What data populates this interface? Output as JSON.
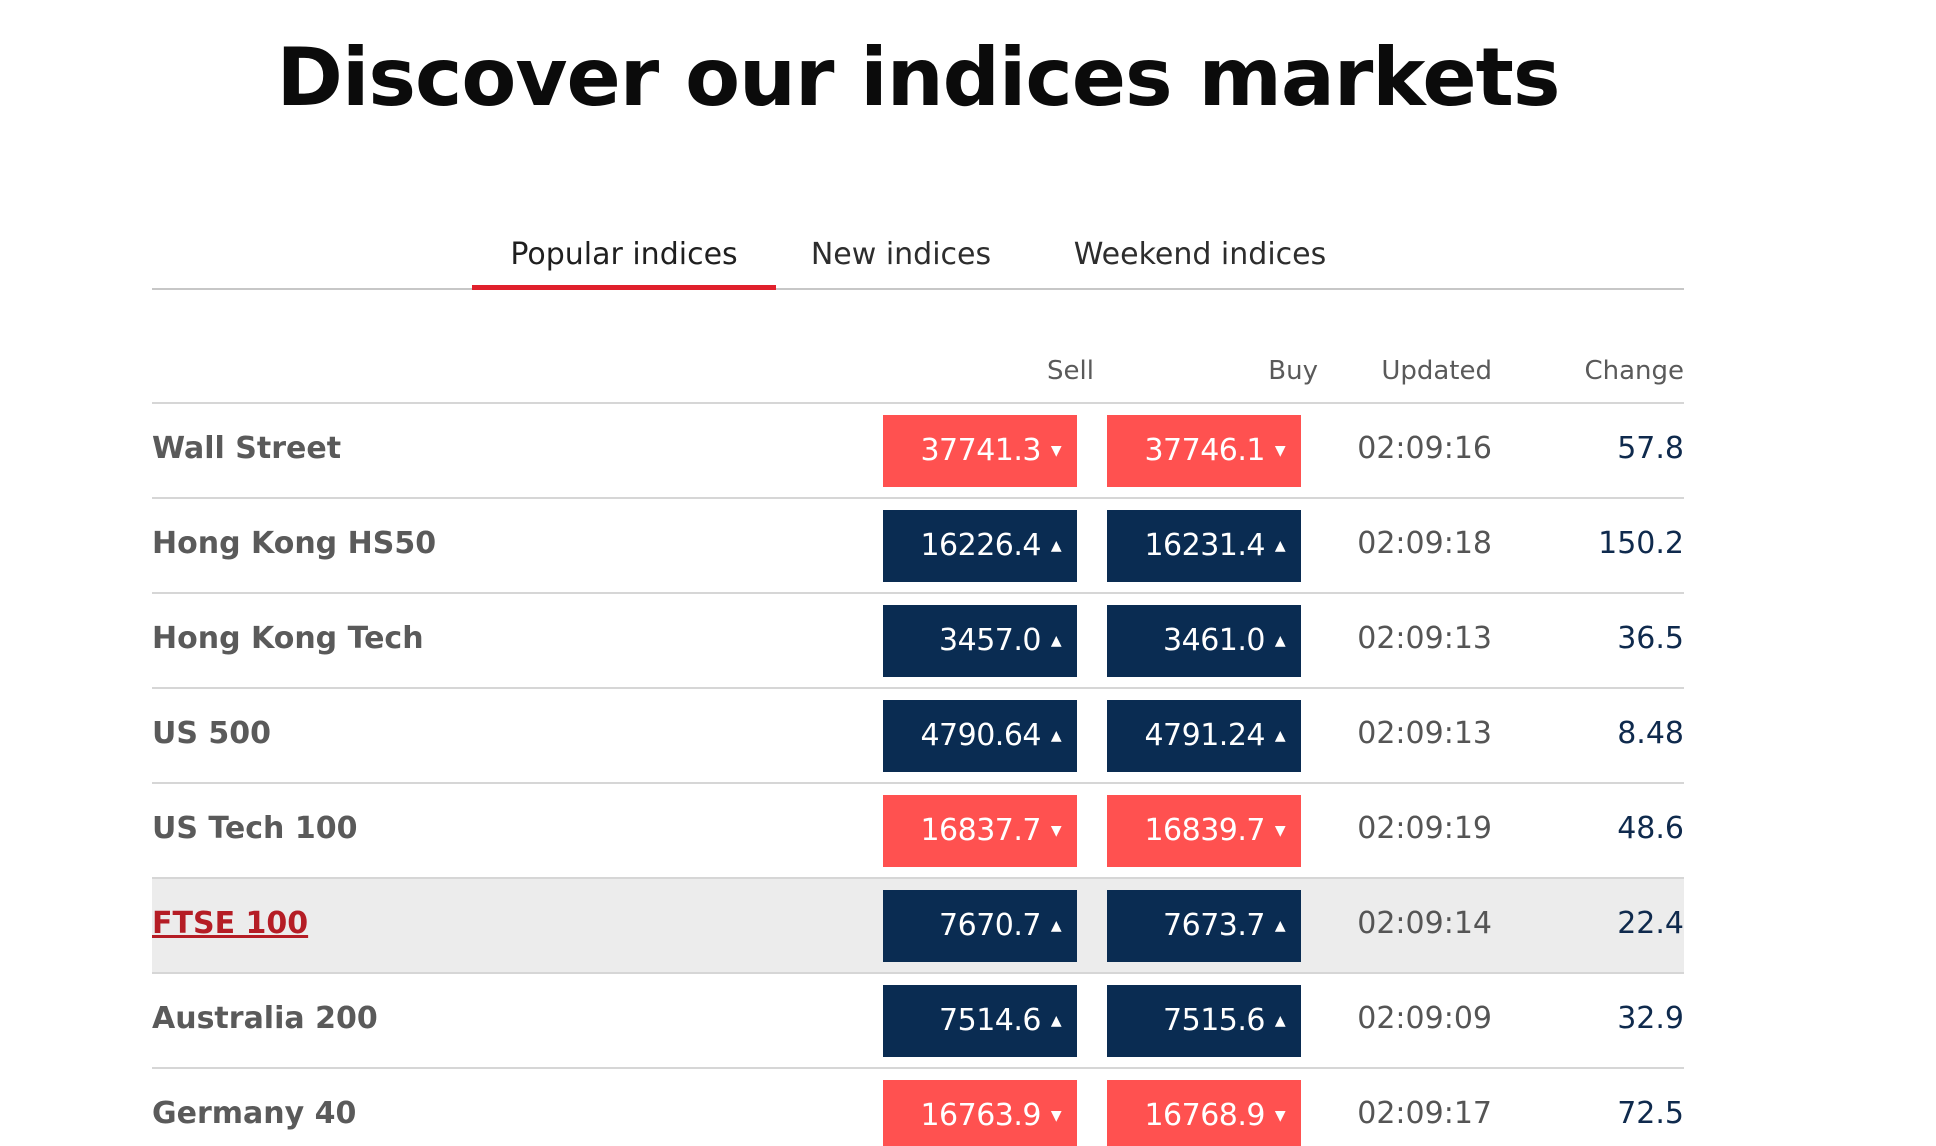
{
  "headline": "Discover our indices markets",
  "tabs": [
    {
      "label": "Popular indices",
      "active": true
    },
    {
      "label": "New indices",
      "active": false
    },
    {
      "label": "Weekend indices",
      "active": false
    }
  ],
  "table": {
    "headers": {
      "name": "",
      "sell": "Sell",
      "buy": "Buy",
      "updated": "Updated",
      "change": "Change"
    },
    "rows": [
      {
        "name": "Wall Street",
        "sell": "37741.3",
        "buy": "37746.1",
        "direction": "down",
        "updated": "02:09:16",
        "change": "57.8"
      },
      {
        "name": "Hong Kong HS50",
        "sell": "16226.4",
        "buy": "16231.4",
        "direction": "up",
        "updated": "02:09:18",
        "change": "150.2"
      },
      {
        "name": "Hong Kong Tech",
        "sell": "3457.0",
        "buy": "3461.0",
        "direction": "up",
        "updated": "02:09:13",
        "change": "36.5"
      },
      {
        "name": "US 500",
        "sell": "4790.64",
        "buy": "4791.24",
        "direction": "up",
        "updated": "02:09:13",
        "change": "8.48"
      },
      {
        "name": "US Tech 100",
        "sell": "16837.7",
        "buy": "16839.7",
        "direction": "down",
        "updated": "02:09:19",
        "change": "48.6"
      },
      {
        "name": "FTSE 100",
        "sell": "7670.7",
        "buy": "7673.7",
        "direction": "up",
        "updated": "02:09:14",
        "change": "22.4",
        "hovered": true
      },
      {
        "name": "Australia 200",
        "sell": "7514.6",
        "buy": "7515.6",
        "direction": "up",
        "updated": "02:09:09",
        "change": "32.9"
      },
      {
        "name": "Germany 40",
        "sell": "16763.9",
        "buy": "16768.9",
        "direction": "down",
        "updated": "02:09:17",
        "change": "72.5"
      }
    ]
  },
  "colors": {
    "down": "#ff5150",
    "up": "#0a2c52",
    "accent": "#e0202c",
    "link": "#b51d25"
  },
  "icons": {
    "up": "triangle-up-icon",
    "down": "triangle-down-icon"
  }
}
